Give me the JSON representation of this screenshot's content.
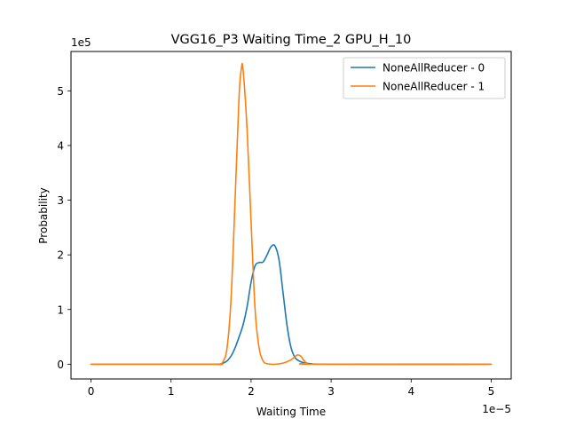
{
  "chart_data": {
    "type": "line",
    "title": "VGG16_P3 Waiting Time_2 GPU_H_10",
    "xlabel": "Waiting Time",
    "ylabel": "Probability",
    "x_offset_label": "1e−5",
    "y_offset_label": "1e5",
    "xlim": [
      -0.25,
      5.25
    ],
    "ylim": [
      -0.27,
      5.72
    ],
    "x_ticks": [
      0,
      1,
      2,
      3,
      4,
      5
    ],
    "y_ticks": [
      0,
      1,
      2,
      3,
      4,
      5
    ],
    "x_tick_labels": [
      "0",
      "1",
      "2",
      "3",
      "4",
      "5"
    ],
    "y_tick_labels": [
      "0",
      "1",
      "2",
      "3",
      "4",
      "5"
    ],
    "grid": false,
    "legend_position": "top-right",
    "series": [
      {
        "name": "NoneAllReducer - 0",
        "color": "#1f77b4",
        "x": [
          0,
          1.5,
          1.6,
          1.65,
          1.7,
          1.75,
          1.8,
          1.85,
          1.9,
          1.95,
          2.0,
          2.05,
          2.1,
          2.15,
          2.2,
          2.25,
          2.3,
          2.35,
          2.4,
          2.45,
          2.5,
          2.55,
          2.6,
          2.65,
          2.7,
          2.75,
          3.0,
          5.0
        ],
        "y": [
          0,
          0,
          0,
          0.02,
          0.06,
          0.15,
          0.3,
          0.5,
          0.72,
          1.05,
          1.5,
          1.8,
          1.86,
          1.87,
          2.0,
          2.15,
          2.16,
          1.9,
          1.3,
          0.7,
          0.3,
          0.12,
          0.06,
          0.03,
          0.02,
          0.01,
          0,
          0
        ]
      },
      {
        "name": "NoneAllReducer - 1",
        "color": "#ff7f0e",
        "x": [
          0,
          1.5,
          1.6,
          1.65,
          1.7,
          1.75,
          1.8,
          1.85,
          1.88,
          1.9,
          1.95,
          2.0,
          2.05,
          2.1,
          2.15,
          2.2,
          2.3,
          2.4,
          2.5,
          2.55,
          2.58,
          2.62,
          2.66,
          2.7,
          2.8,
          5.0
        ],
        "y": [
          0,
          0,
          0,
          0.05,
          0.3,
          1.2,
          3.0,
          4.9,
          5.42,
          5.38,
          4.3,
          2.6,
          1.0,
          0.3,
          0.06,
          0.01,
          0,
          0.02,
          0.08,
          0.14,
          0.17,
          0.15,
          0.07,
          0.02,
          0,
          0
        ]
      }
    ]
  }
}
